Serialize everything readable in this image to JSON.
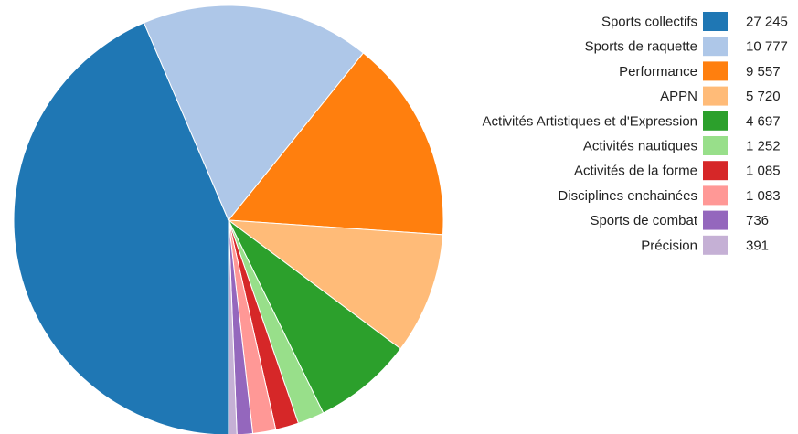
{
  "chart_data": {
    "type": "pie",
    "title": "",
    "start_angle_deg": 180,
    "direction": "clockwise",
    "legend_placement": "right",
    "slices": [
      {
        "label": "Sports collectifs",
        "value": 27245,
        "value_text": "27 245",
        "color": "#1f77b4"
      },
      {
        "label": "Sports de raquette",
        "value": 10777,
        "value_text": "10 777",
        "color": "#aec7e8"
      },
      {
        "label": "Performance",
        "value": 9557,
        "value_text": "9 557",
        "color": "#ff7f0e"
      },
      {
        "label": "APPN",
        "value": 5720,
        "value_text": "5 720",
        "color": "#ffbb78"
      },
      {
        "label": "Activités Artistiques et d'Expression",
        "value": 4697,
        "value_text": "4 697",
        "color": "#2ca02c"
      },
      {
        "label": "Activités nautiques",
        "value": 1252,
        "value_text": "1 252",
        "color": "#98df8a"
      },
      {
        "label": "Activités de la forme",
        "value": 1085,
        "value_text": "1 085",
        "color": "#d62728"
      },
      {
        "label": "Disciplines enchainées",
        "value": 1083,
        "value_text": "1 083",
        "color": "#ff9896"
      },
      {
        "label": "Sports de combat",
        "value": 736,
        "value_text": "736",
        "color": "#9467bd"
      },
      {
        "label": "Précision",
        "value": 391,
        "value_text": "391",
        "color": "#c5b0d5"
      }
    ]
  }
}
